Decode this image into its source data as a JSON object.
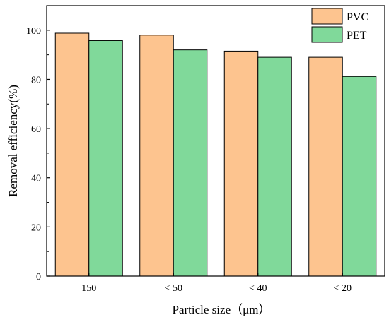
{
  "chart_data": {
    "type": "bar",
    "categories": [
      "150",
      "< 50",
      "< 40",
      "< 20"
    ],
    "series": [
      {
        "name": "PVC",
        "values": [
          98.8,
          98.0,
          91.5,
          89.0
        ],
        "color": "#FDC48F"
      },
      {
        "name": "PET",
        "values": [
          95.8,
          92.0,
          89.0,
          81.2
        ],
        "color": "#80D99A"
      }
    ],
    "xlabel": "Particle size（μm）",
    "ylabel": "Removal efficiency(%)",
    "ylim": [
      0,
      110
    ],
    "yticks": [
      0,
      20,
      40,
      60,
      80,
      100
    ],
    "grid": false,
    "legend_position": "top-right"
  }
}
